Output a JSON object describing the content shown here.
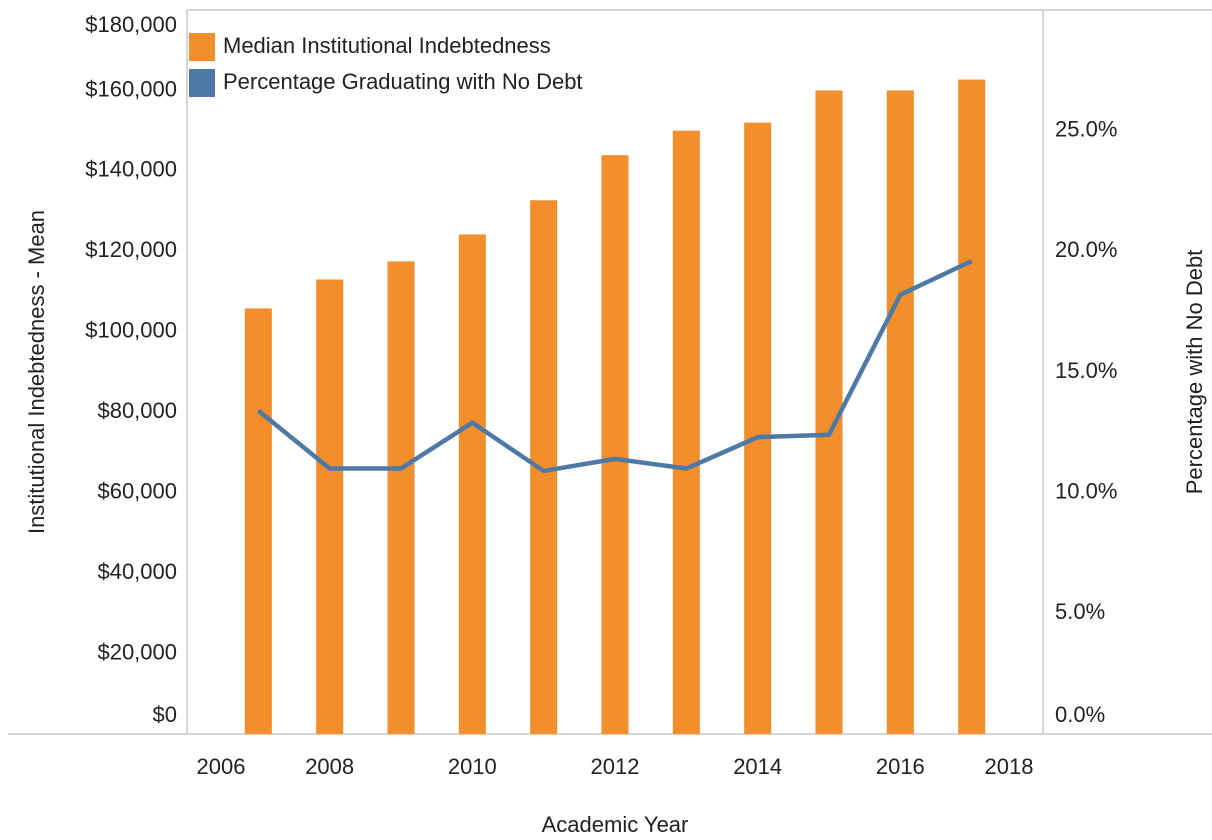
{
  "chart_data": {
    "type": "bar_line",
    "x": [
      2007,
      2008,
      2009,
      2010,
      2011,
      2012,
      2013,
      2014,
      2015,
      2016,
      2017
    ],
    "series": [
      {
        "name": "Median Institutional Indebtedness",
        "color": "#f28e2b",
        "type": "bar",
        "values": [
          105800,
          113000,
          117500,
          124200,
          132700,
          143900,
          150000,
          152000,
          160000,
          160000,
          162700
        ]
      },
      {
        "name": "Percentage Graduating with No Debt",
        "color": "#4e79a7",
        "type": "line",
        "axis": "y2",
        "values": [
          13.4,
          11.0,
          11.0,
          12.9,
          10.9,
          11.4,
          11.0,
          12.3,
          12.4,
          18.2,
          19.6
        ]
      }
    ],
    "x_label": "Academic Year",
    "y_label": "Institutional Indebtedness - Mean",
    "y2_label": "Percentage with No Debt",
    "xlim": [
      2006,
      2018
    ],
    "xticks": [
      2006,
      2008,
      2010,
      2012,
      2014,
      2016,
      2018
    ],
    "ylim": [
      0,
      180000
    ],
    "yticks": [
      {
        "value": 0,
        "label": "$0"
      },
      {
        "value": 20000,
        "label": "$20,000"
      },
      {
        "value": 40000,
        "label": "$40,000"
      },
      {
        "value": 60000,
        "label": "$60,000"
      },
      {
        "value": 80000,
        "label": "$80,000"
      },
      {
        "value": 100000,
        "label": "$100,000"
      },
      {
        "value": 120000,
        "label": "$120,000"
      },
      {
        "value": 140000,
        "label": "$140,000"
      },
      {
        "value": 160000,
        "label": "$160,000"
      },
      {
        "value": 180000,
        "label": "$180,000"
      }
    ],
    "y2lim": [
      0,
      30
    ],
    "y2ticks": [
      {
        "value": 0,
        "label": "0.0%"
      },
      {
        "value": 5,
        "label": "5.0%"
      },
      {
        "value": 10,
        "label": "10.0%"
      },
      {
        "value": 15,
        "label": "15.0%"
      },
      {
        "value": 20,
        "label": "20.0%"
      },
      {
        "value": 25,
        "label": "25.0%"
      }
    ],
    "legend": "top-left"
  }
}
